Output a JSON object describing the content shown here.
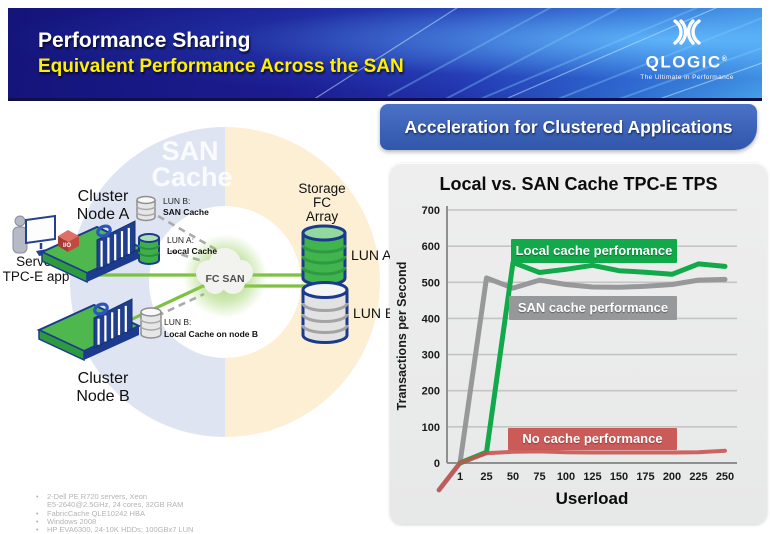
{
  "header": {
    "title": "Performance Sharing",
    "subtitle": "Equivalent Performance Across the SAN",
    "bg_color": "#1b1b8e",
    "logo": {
      "wordmark": "QLOGIC",
      "reg": "®",
      "tagline": "The Ultimate in Performance"
    }
  },
  "banner": {
    "label": "Acceleration for Clustered Applications",
    "color": "#3c63b4"
  },
  "diagram": {
    "ring": {
      "label_line1": "SAN",
      "label_line2": "Cache",
      "left_color": "#dfe4f3",
      "right_color": "#fcefd3"
    },
    "server": {
      "label_line1": "Server",
      "label_line2": "TPC-E app"
    },
    "node_a": {
      "label_line1": "Cluster",
      "label_line2": "Node A",
      "io_badge": "I/O"
    },
    "node_b": {
      "label_line1": "Cluster",
      "label_line2": "Node B"
    },
    "cache_a1": {
      "line1": "LUN B:",
      "line2": "SAN Cache"
    },
    "cache_a2": {
      "line1": "LUN A:",
      "line2": "Local Cache"
    },
    "cache_b": {
      "line1": "LUN B:",
      "line2": "Local Cache on node B"
    },
    "cloud": {
      "label": "FC SAN"
    },
    "storage": {
      "label_line1": "Storage",
      "label_line2": "FC",
      "label_line3": "Array",
      "lun_a": "LUN A",
      "lun_b": "LUN B"
    },
    "link_color": "#7cc142"
  },
  "footnotes": {
    "items": [
      {
        "bullet": "•",
        "text": "2-Dell PE R720 servers, Xeon"
      },
      {
        "bullet": "",
        "text": "E5-2640@2.5GHz, 24 cores, 32GB RAM"
      },
      {
        "bullet": "•",
        "text": "FabricCache QLE10242 HBA"
      },
      {
        "bullet": "•",
        "text": "Windows 2008"
      },
      {
        "bullet": "•",
        "text": "HP EVA6300, 24-10K HDDs; 100GBx7 LUN"
      }
    ]
  },
  "chart_data": {
    "type": "line",
    "title": "Local vs. SAN Cache TPC-E TPS",
    "xlabel": "Userload",
    "ylabel": "Transactions per Second",
    "x_ticks": [
      1,
      25,
      50,
      75,
      100,
      125,
      150,
      175,
      200,
      225,
      250
    ],
    "ylim": [
      0,
      700
    ],
    "y_tick_step": 100,
    "grid": true,
    "legend_position": "labels-on-chart",
    "series": [
      {
        "name": "Local cache performance",
        "color": "#12a94b",
        "z": 2,
        "width": 5,
        "values": [
          0,
          30,
          555,
          527,
          536,
          547,
          532,
          528,
          522,
          551,
          544
        ]
      },
      {
        "name": "SAN cache performance",
        "color": "#97989a",
        "z": 1,
        "width": 5,
        "starts_below_axis": true,
        "values": [
          0,
          512,
          484,
          506,
          494,
          487,
          486,
          489,
          494,
          506,
          508
        ]
      },
      {
        "name": "No cache performance",
        "color": "#c9514f",
        "z": 3,
        "width": 4,
        "opacity": 0.88,
        "starts_below_axis": true,
        "values": [
          0,
          27,
          31,
          32,
          30,
          29,
          29,
          29,
          29,
          30,
          34
        ]
      }
    ]
  }
}
